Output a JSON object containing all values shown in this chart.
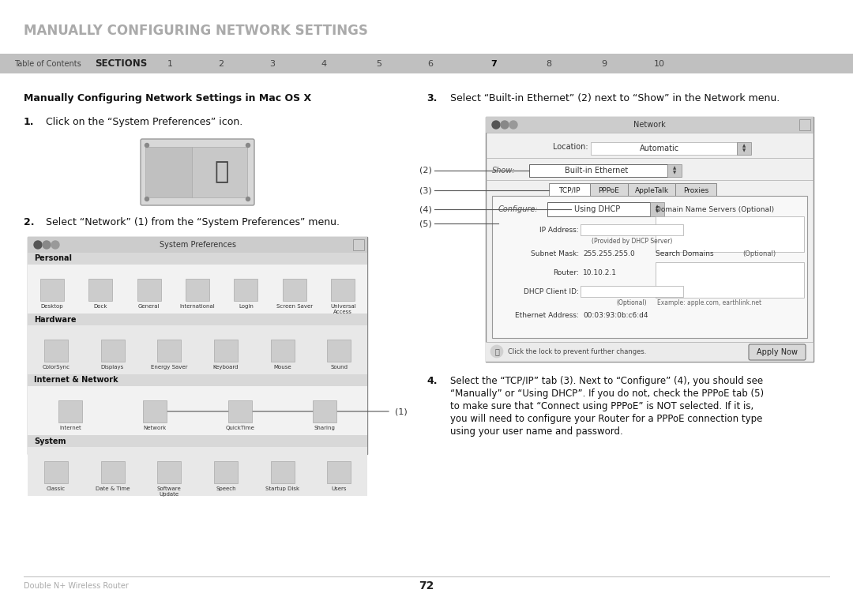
{
  "title": "MANUALLY CONFIGURING NETWORK SETTINGS",
  "title_color": "#aaaaaa",
  "bg_color": "#ffffff",
  "nav_bg": "#c0c0c0",
  "nav_text_toc": "Table of Contents",
  "nav_text_sections": "SECTIONS",
  "nav_numbers": [
    "1",
    "2",
    "3",
    "4",
    "5",
    "6",
    "7",
    "8",
    "9",
    "10"
  ],
  "nav_highlight": "7",
  "section_heading": "Manually Configuring Network Settings in Mac OS X",
  "step1_num": "1.",
  "step1_text": "Click on the “System Preferences” icon.",
  "step2_num": "2.",
  "step2_text": "Select “Network” (1) from the “System Preferences” menu.",
  "step3_num": "3.",
  "step3_text": "Select “Built-in Ethernet” (2) next to “Show” in the Network menu.",
  "step4_num": "4.",
  "step4_line1": "Select the “TCP/IP” tab (3). Next to “Configure” (4), you should see",
  "step4_line2": "“Manually” or “Using DHCP”. If you do not, check the PPPoE tab (5)",
  "step4_line3": "to make sure that “Connect using PPPoE” is NOT selected. If it is,",
  "step4_line4": "you will need to configure your Router for a PPPoE connection type",
  "step4_line5": "using your user name and password.",
  "footer_left": "Double N+ Wireless Router",
  "footer_center": "72"
}
